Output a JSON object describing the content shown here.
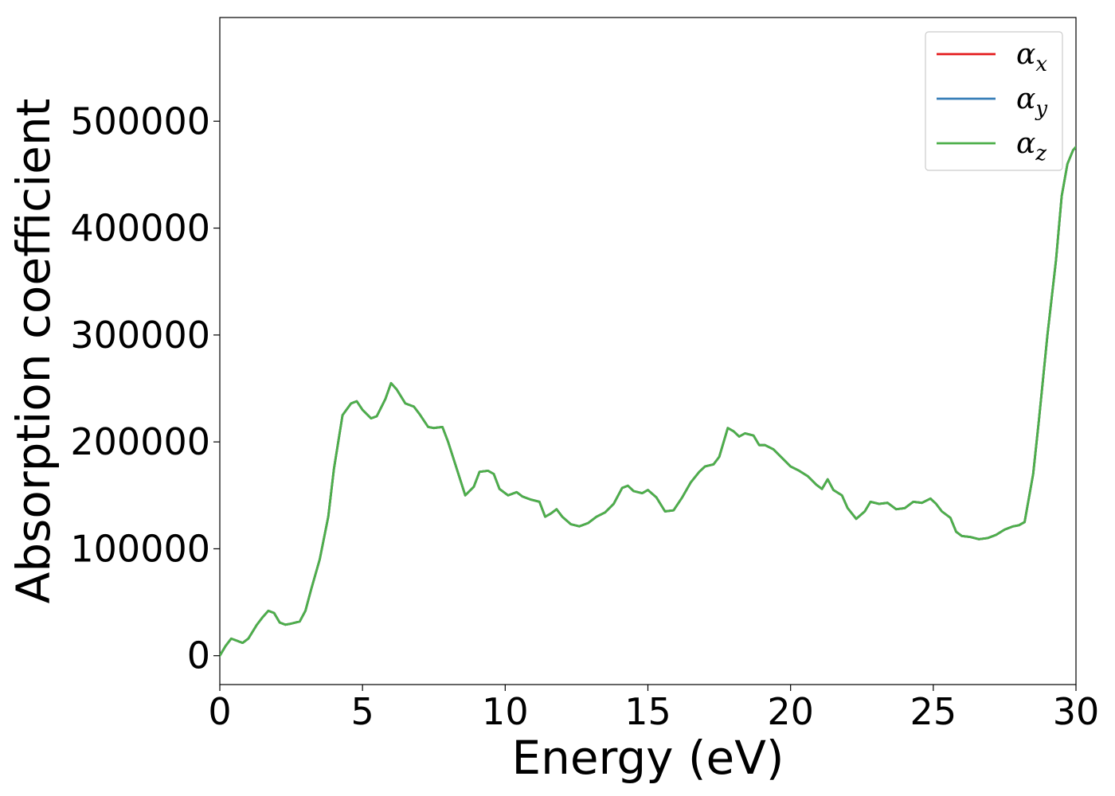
{
  "chart_data": {
    "type": "line",
    "title": "",
    "xlabel": "Energy (eV)",
    "ylabel": "Absorption coefficient",
    "xlim": [
      0,
      30
    ],
    "ylim": [
      -27000,
      597000
    ],
    "xticks": [
      0,
      5,
      10,
      15,
      20,
      25,
      30
    ],
    "yticks": [
      0,
      100000,
      200000,
      300000,
      400000,
      500000
    ],
    "grid": false,
    "legend_position": "top-right",
    "x": [
      0,
      0.2,
      0.4,
      0.6,
      0.8,
      1.0,
      1.3,
      1.5,
      1.7,
      1.9,
      2.1,
      2.3,
      2.5,
      2.8,
      3.0,
      3.2,
      3.5,
      3.8,
      4.0,
      4.3,
      4.6,
      4.8,
      5.0,
      5.3,
      5.5,
      5.8,
      6.0,
      6.2,
      6.5,
      6.8,
      7.0,
      7.3,
      7.5,
      7.8,
      8.0,
      8.3,
      8.6,
      8.9,
      9.1,
      9.4,
      9.6,
      9.8,
      10.1,
      10.4,
      10.6,
      10.9,
      11.2,
      11.4,
      11.6,
      11.8,
      12.0,
      12.3,
      12.6,
      12.9,
      13.2,
      13.5,
      13.8,
      14.1,
      14.3,
      14.5,
      14.8,
      15.0,
      15.3,
      15.6,
      15.9,
      16.2,
      16.5,
      16.8,
      17.0,
      17.3,
      17.5,
      17.8,
      18.0,
      18.2,
      18.4,
      18.7,
      18.9,
      19.1,
      19.4,
      19.7,
      20.0,
      20.3,
      20.6,
      20.9,
      21.1,
      21.3,
      21.5,
      21.8,
      22.0,
      22.3,
      22.6,
      22.8,
      23.1,
      23.4,
      23.7,
      24.0,
      24.3,
      24.6,
      24.9,
      25.1,
      25.3,
      25.6,
      25.8,
      26.0,
      26.3,
      26.6,
      26.9,
      27.2,
      27.5,
      27.8,
      28.0,
      28.2,
      28.5,
      28.7,
      29.0,
      29.3,
      29.5,
      29.7,
      29.9,
      30.0
    ],
    "series": [
      {
        "name": "α",
        "sub": "x",
        "color": "#e41a1c",
        "values": [
          0,
          9000,
          16000,
          14000,
          12000,
          16000,
          29000,
          36000,
          42000,
          40000,
          31000,
          29000,
          30000,
          32000,
          42000,
          62000,
          90000,
          130000,
          175000,
          225000,
          236000,
          238000,
          230000,
          222000,
          224000,
          240000,
          255000,
          249000,
          236000,
          233000,
          226000,
          214000,
          213000,
          214000,
          200000,
          175000,
          150000,
          158000,
          172000,
          173000,
          170000,
          156000,
          150000,
          153000,
          149000,
          146000,
          144000,
          130000,
          133000,
          137000,
          130000,
          123000,
          121000,
          124000,
          130000,
          134000,
          142000,
          157000,
          159000,
          154000,
          152000,
          155000,
          148000,
          135000,
          136000,
          148000,
          162000,
          172000,
          177000,
          179000,
          186000,
          213000,
          210000,
          205000,
          208000,
          206000,
          197000,
          197000,
          193000,
          185000,
          177000,
          173000,
          168000,
          160000,
          156000,
          165000,
          155000,
          150000,
          138000,
          128000,
          135000,
          144000,
          142000,
          143000,
          137000,
          138000,
          144000,
          143000,
          147000,
          142000,
          135000,
          129000,
          116000,
          112000,
          111000,
          109000,
          110000,
          113000,
          118000,
          121000,
          122000,
          125000,
          170000,
          220000,
          300000,
          370000,
          430000,
          460000,
          473000,
          476000
        ]
      },
      {
        "name": "α",
        "sub": "y",
        "color": "#377eb8",
        "values": [
          0,
          9000,
          16000,
          14000,
          12000,
          16000,
          29000,
          36000,
          42000,
          40000,
          31000,
          29000,
          30000,
          32000,
          42000,
          62000,
          90000,
          130000,
          175000,
          225000,
          236000,
          238000,
          230000,
          222000,
          224000,
          240000,
          255000,
          249000,
          236000,
          233000,
          226000,
          214000,
          213000,
          214000,
          200000,
          175000,
          150000,
          158000,
          172000,
          173000,
          170000,
          156000,
          150000,
          153000,
          149000,
          146000,
          144000,
          130000,
          133000,
          137000,
          130000,
          123000,
          121000,
          124000,
          130000,
          134000,
          142000,
          157000,
          159000,
          154000,
          152000,
          155000,
          148000,
          135000,
          136000,
          148000,
          162000,
          172000,
          177000,
          179000,
          186000,
          213000,
          210000,
          205000,
          208000,
          206000,
          197000,
          197000,
          193000,
          185000,
          177000,
          173000,
          168000,
          160000,
          156000,
          165000,
          155000,
          150000,
          138000,
          128000,
          135000,
          144000,
          142000,
          143000,
          137000,
          138000,
          144000,
          143000,
          147000,
          142000,
          135000,
          129000,
          116000,
          112000,
          111000,
          109000,
          110000,
          113000,
          118000,
          121000,
          122000,
          125000,
          170000,
          220000,
          300000,
          370000,
          430000,
          460000,
          473000,
          476000
        ]
      },
      {
        "name": "α",
        "sub": "z",
        "color": "#4daf4a",
        "values": [
          0,
          9000,
          16000,
          14000,
          12000,
          16000,
          29000,
          36000,
          42000,
          40000,
          31000,
          29000,
          30000,
          32000,
          42000,
          62000,
          90000,
          130000,
          175000,
          225000,
          236000,
          238000,
          230000,
          222000,
          224000,
          240000,
          255000,
          249000,
          236000,
          233000,
          226000,
          214000,
          213000,
          214000,
          200000,
          175000,
          150000,
          158000,
          172000,
          173000,
          170000,
          156000,
          150000,
          153000,
          149000,
          146000,
          144000,
          130000,
          133000,
          137000,
          130000,
          123000,
          121000,
          124000,
          130000,
          134000,
          142000,
          157000,
          159000,
          154000,
          152000,
          155000,
          148000,
          135000,
          136000,
          148000,
          162000,
          172000,
          177000,
          179000,
          186000,
          213000,
          210000,
          205000,
          208000,
          206000,
          197000,
          197000,
          193000,
          185000,
          177000,
          173000,
          168000,
          160000,
          156000,
          165000,
          155000,
          150000,
          138000,
          128000,
          135000,
          144000,
          142000,
          143000,
          137000,
          138000,
          144000,
          143000,
          147000,
          142000,
          135000,
          129000,
          116000,
          112000,
          111000,
          109000,
          110000,
          113000,
          118000,
          121000,
          122000,
          125000,
          170000,
          220000,
          300000,
          370000,
          430000,
          460000,
          473000,
          476000
        ]
      }
    ]
  }
}
